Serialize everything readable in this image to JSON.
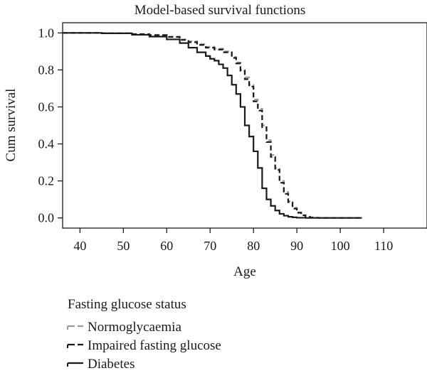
{
  "chart_data": {
    "type": "line",
    "title": "Model-based survival functions",
    "xlabel": "Age",
    "ylabel": "Cum survival",
    "xlim": [
      36,
      120
    ],
    "ylim": [
      -0.055,
      1.055
    ],
    "xticks": [
      40,
      50,
      60,
      70,
      80,
      90,
      100,
      110
    ],
    "yticks": [
      0.0,
      0.2,
      0.4,
      0.6,
      0.8,
      1.0
    ],
    "ytick_labels": [
      "0.0",
      "0.2",
      "0.4",
      "0.6",
      "0.8",
      "1.0"
    ],
    "grid": false,
    "legend": {
      "title": "Fasting glucose status",
      "position": "below"
    },
    "series": [
      {
        "name": "Normoglycaemia",
        "color": "#9a9a9a",
        "style": "dashed",
        "x": [
          36,
          45,
          52,
          56,
          60,
          63,
          65,
          67,
          69,
          71,
          73,
          75,
          76,
          77,
          78,
          79,
          80,
          81,
          82,
          83,
          84,
          85,
          86,
          87,
          88,
          89,
          90,
          91,
          92,
          93,
          94,
          95,
          105
        ],
        "y": [
          1.0,
          0.998,
          0.994,
          0.99,
          0.98,
          0.965,
          0.955,
          0.94,
          0.925,
          0.915,
          0.9,
          0.87,
          0.84,
          0.8,
          0.76,
          0.72,
          0.64,
          0.59,
          0.5,
          0.42,
          0.34,
          0.27,
          0.2,
          0.14,
          0.09,
          0.055,
          0.03,
          0.015,
          0.007,
          0.003,
          0.001,
          0.0,
          0.0
        ]
      },
      {
        "name": "Impaired fasting glucose",
        "color": "#1a1a1a",
        "style": "dashed",
        "x": [
          36,
          45,
          52,
          56,
          60,
          63,
          65,
          67,
          69,
          71,
          73,
          75,
          76,
          77,
          78,
          79,
          80,
          81,
          82,
          83,
          84,
          85,
          86,
          87,
          88,
          89,
          90,
          91,
          92,
          93,
          94,
          95,
          105
        ],
        "y": [
          1.0,
          0.998,
          0.993,
          0.988,
          0.978,
          0.962,
          0.95,
          0.935,
          0.92,
          0.91,
          0.895,
          0.865,
          0.835,
          0.795,
          0.75,
          0.71,
          0.63,
          0.58,
          0.49,
          0.41,
          0.33,
          0.26,
          0.19,
          0.13,
          0.085,
          0.05,
          0.028,
          0.014,
          0.006,
          0.002,
          0.001,
          0.0,
          0.0
        ]
      },
      {
        "name": "Diabetes",
        "color": "#1a1a1a",
        "style": "solid",
        "x": [
          36,
          45,
          52,
          56,
          60,
          63,
          65,
          67,
          69,
          70,
          71,
          72,
          73,
          74,
          75,
          76,
          77,
          78,
          79,
          80,
          81,
          82,
          83,
          84,
          85,
          86,
          87,
          88,
          89,
          90,
          92,
          105
        ],
        "y": [
          1.0,
          0.998,
          0.99,
          0.98,
          0.965,
          0.945,
          0.92,
          0.895,
          0.875,
          0.86,
          0.85,
          0.83,
          0.81,
          0.77,
          0.72,
          0.67,
          0.6,
          0.5,
          0.44,
          0.36,
          0.27,
          0.16,
          0.1,
          0.065,
          0.04,
          0.022,
          0.012,
          0.006,
          0.003,
          0.001,
          0.0,
          0.0
        ]
      }
    ]
  }
}
